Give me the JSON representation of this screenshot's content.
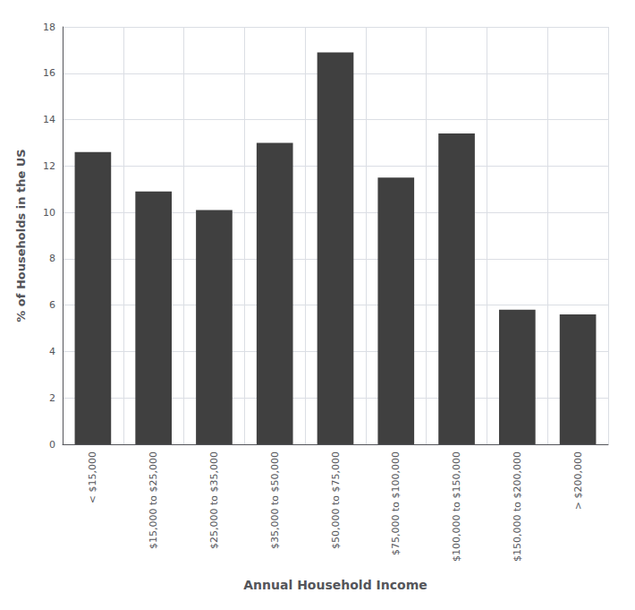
{
  "chart_data": {
    "type": "bar",
    "categories": [
      "< $15,000",
      "$15,000 to $25,000",
      "$25,000 to $35,000",
      "$35,000 to $50,000",
      "$50,000 to $75,000",
      "$75,000 to $100,000",
      "$100,000 to $150,000",
      "$150,000 to $200,000",
      "> $200,000"
    ],
    "values": [
      12.6,
      10.9,
      10.1,
      13.0,
      16.9,
      11.5,
      13.4,
      5.8,
      5.6
    ],
    "color": "#404040",
    "xlabel": "Annual Household Income",
    "ylabel": "% of Households in the US",
    "ylim": [
      0,
      18
    ],
    "yticks": [
      0,
      2,
      4,
      6,
      8,
      10,
      12,
      14,
      16,
      18
    ],
    "grid": true
  }
}
